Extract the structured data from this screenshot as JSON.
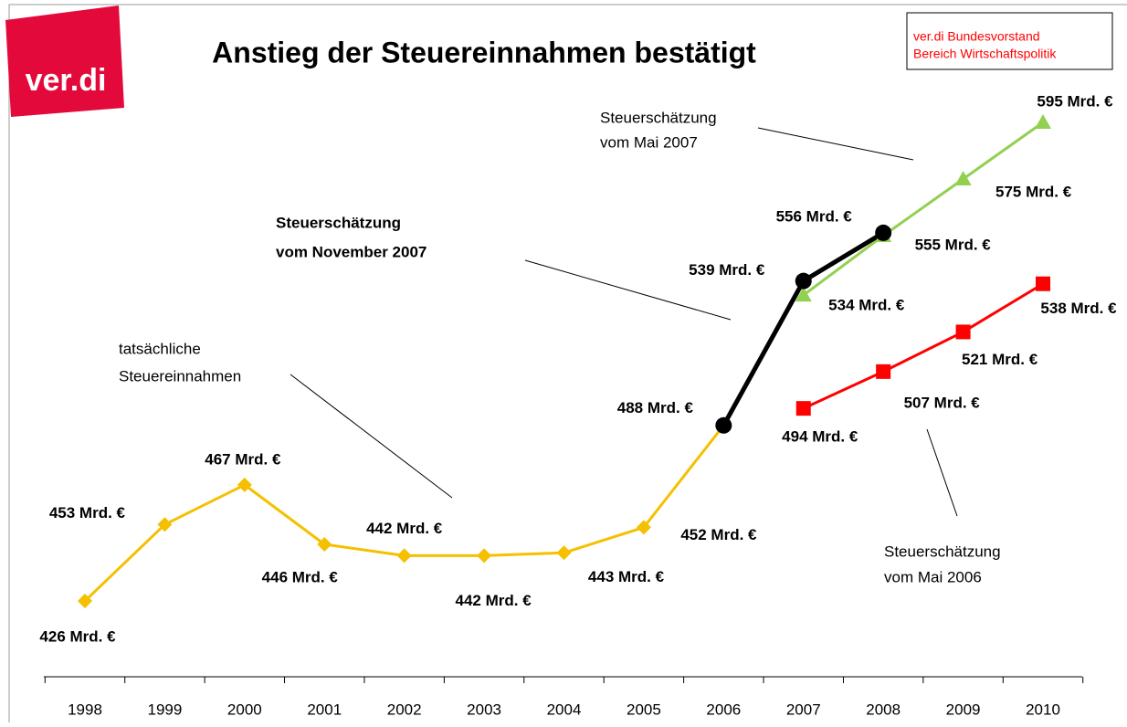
{
  "logo": "ver.di",
  "publisher": [
    "ver.di Bundesvorstand",
    "Bereich Wirtschaftspolitik"
  ],
  "chart_data": {
    "type": "line",
    "title": "Anstieg der Steuereinnahmen bestätigt",
    "categories": [
      "1998",
      "1999",
      "2000",
      "2001",
      "2002",
      "2003",
      "2004",
      "2005",
      "2006",
      "2007",
      "2008",
      "2009",
      "2010"
    ],
    "series": [
      {
        "color": "#f5c000",
        "marker": "diamond",
        "values": [
          426,
          453,
          467,
          446,
          442,
          442,
          443,
          452,
          488,
          null,
          null,
          null,
          null
        ],
        "value_labels": [
          "426 Mrd. €",
          "453 Mrd. €",
          "467 Mrd. €",
          "446 Mrd. €",
          "442 Mrd. €",
          "442 Mrd. €",
          "443 Mrd. €",
          "452 Mrd. €",
          "488 Mrd. €",
          null,
          null,
          null,
          null
        ]
      },
      {
        "color": "#92d050",
        "marker": "triangle",
        "values": [
          null,
          null,
          null,
          null,
          null,
          null,
          null,
          null,
          null,
          534,
          555,
          575,
          595
        ],
        "value_labels": [
          null,
          null,
          null,
          null,
          null,
          null,
          null,
          null,
          null,
          "534 Mrd. €",
          "555 Mrd. €",
          "575 Mrd. €",
          "595 Mrd. €"
        ]
      },
      {
        "color": "#000000",
        "marker": "circle",
        "values": [
          null,
          null,
          null,
          null,
          null,
          null,
          null,
          null,
          488,
          539,
          556,
          null,
          null
        ],
        "value_labels": [
          null,
          null,
          null,
          null,
          null,
          null,
          null,
          null,
          null,
          "539 Mrd. €",
          "556 Mrd. €",
          null,
          null
        ]
      },
      {
        "color": "#ff0000",
        "marker": "square",
        "values": [
          null,
          null,
          null,
          null,
          null,
          null,
          null,
          null,
          null,
          494,
          507,
          521,
          538
        ],
        "value_labels": [
          null,
          null,
          null,
          null,
          null,
          null,
          null,
          null,
          null,
          "494 Mrd. €",
          "507 Mrd. €",
          "521 Mrd. €",
          "538 Mrd. €"
        ]
      }
    ],
    "annotations": [
      {
        "lines": [
          "tatsächliche",
          "Steuereinnahmen"
        ]
      },
      {
        "lines": [
          "Steuerschätzung",
          "vom November 2007"
        ]
      },
      {
        "lines": [
          "Steuerschätzung",
          "vom Mai 2007"
        ]
      },
      {
        "lines": [
          "Steuerschätzung",
          "vom Mai 2006"
        ]
      }
    ]
  }
}
